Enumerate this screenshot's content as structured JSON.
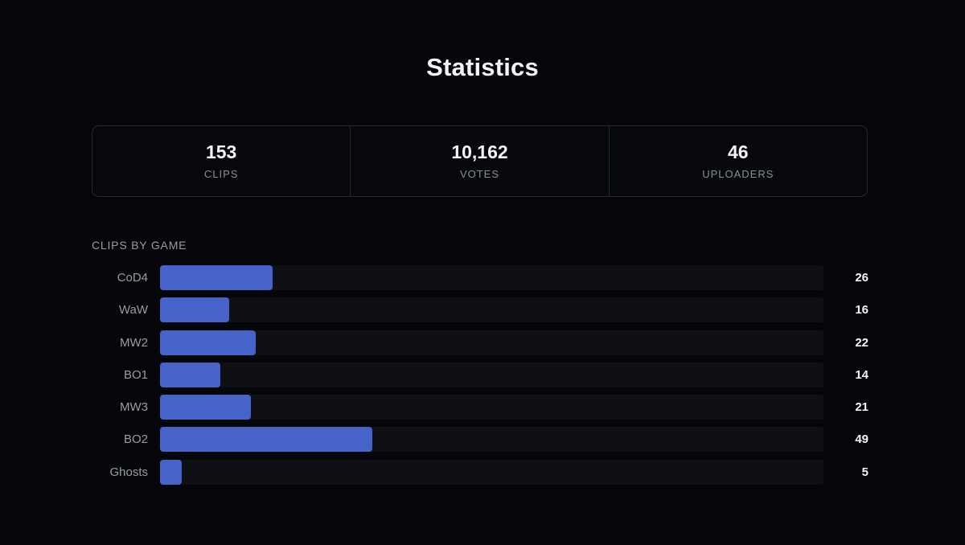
{
  "page": {
    "title": "Statistics"
  },
  "stats": [
    {
      "value": "153",
      "label": "CLIPS"
    },
    {
      "value": "10,162",
      "label": "VOTES"
    },
    {
      "value": "46",
      "label": "UPLOADERS"
    }
  ],
  "clips_by_game": {
    "title": "CLIPS BY GAME"
  },
  "colors": {
    "background": "#05060a",
    "bar_fill": "#4563c9",
    "bar_track": "#0f1015",
    "border": "#262830"
  },
  "chart_data": {
    "type": "bar",
    "orientation": "horizontal",
    "title": "CLIPS BY GAME",
    "categories": [
      "CoD4",
      "WaW",
      "MW2",
      "BO1",
      "MW3",
      "BO2",
      "Ghosts"
    ],
    "values": [
      26,
      16,
      22,
      14,
      21,
      49,
      5
    ],
    "xlim": [
      0,
      153
    ],
    "grid": false,
    "legend": "none"
  }
}
